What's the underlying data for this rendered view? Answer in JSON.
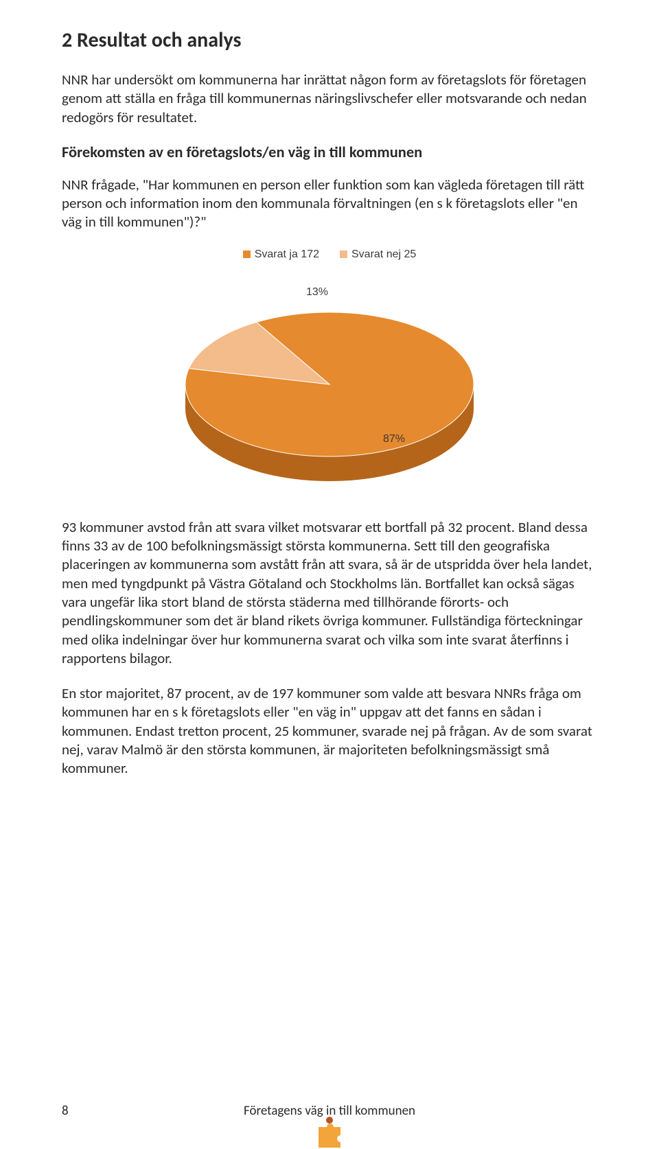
{
  "section": {
    "title": "2 Resultat och analys",
    "intro": "NNR har undersökt om kommunerna har inrättat någon form av företagslots för företagen genom att ställa en fråga till kommunernas näringslivschefer eller motsvarande och nedan redogörs för resultatet.",
    "subheading": "Förekomsten av en företagslots/en väg in till kommunen",
    "question": "NNR frågade, \"Har kommunen en person eller funktion som kan vägleda företagen till rätt person och information inom den kommunala förvaltningen (en s k företagslots eller \"en väg in till kommunen\")?\"",
    "p1": "93 kommuner avstod från att svara vilket motsvarar ett bortfall på 32 procent. Bland dessa finns 33 av de 100 befolkningsmässigt största kommunerna. Sett till den geografiska placeringen av kommunerna som avstått från att svara, så är de utspridda över hela landet, men med tyngdpunkt på Västra Götaland och Stockholms län. Bortfallet kan också sägas vara ungefär lika stort bland de största städerna med tillhörande förorts- och pendlingskommuner som det är bland rikets övriga kommuner. Fullständiga förteckningar med olika indelningar över hur kommunerna svarat och vilka som inte svarat återfinns i rapportens bilagor.",
    "p2": "En stor majoritet, 87 procent, av de 197 kommuner som valde att besvara NNRs fråga om kommunen har en s k företagslots eller \"en väg in\" uppgav att det fanns en sådan i kommunen. Endast tretton procent, 25 kommuner, svarade nej på frågan. Av de som svarat nej, varav Malmö är den största kommunen, är majoriteten befolkningsmässigt små kommuner."
  },
  "chart": {
    "type": "pie",
    "legend": [
      {
        "label": "Svarat ja 172",
        "color": "#e58a2e"
      },
      {
        "label": "Svarat nej 25",
        "color": "#f4bb8b"
      }
    ],
    "slices": [
      {
        "value": 87,
        "pct_label": "87%",
        "fill_top": "#e58a2e",
        "fill_side": "#b5651a"
      },
      {
        "value": 13,
        "pct_label": "13%",
        "fill_top": "#f4bb8b",
        "fill_side": "#d4966a"
      }
    ],
    "label_color": "#3a3a3a",
    "label_fontsize": 16,
    "background_color": "#ffffff"
  },
  "footer": {
    "page_number": "8",
    "running_title": "Företagens väg in till kommunen",
    "icon_colors": {
      "body": "#f3a53b",
      "head": "#b8541f"
    }
  }
}
